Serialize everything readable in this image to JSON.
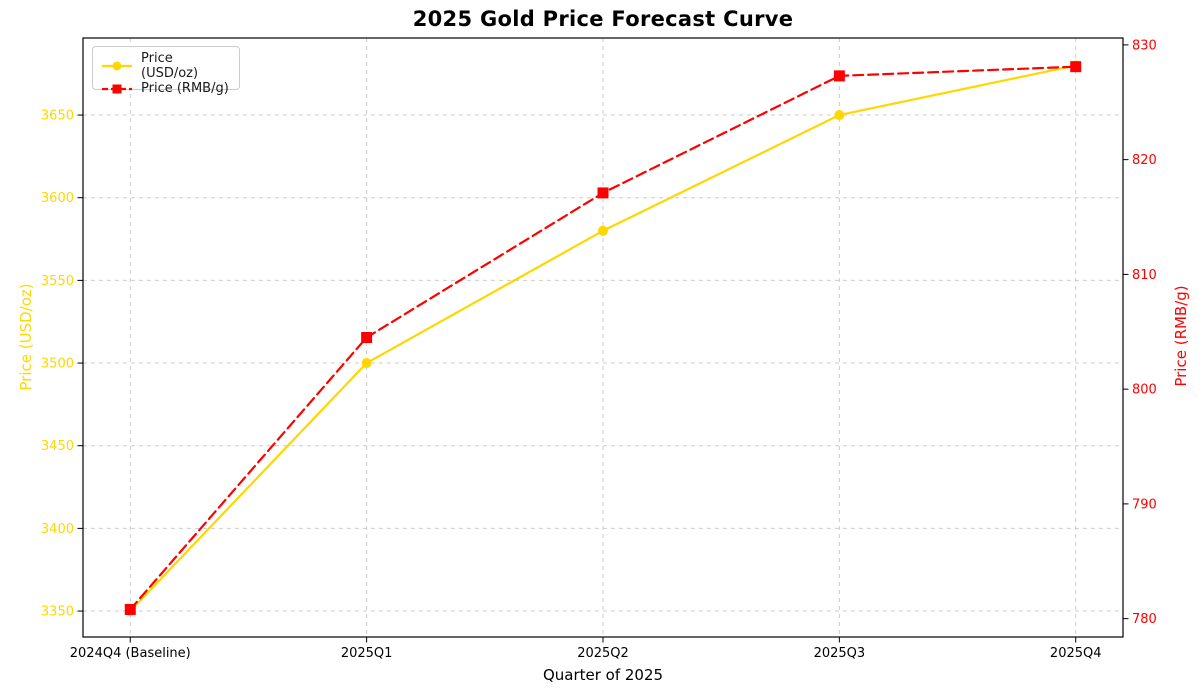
{
  "chart_data": {
    "type": "line",
    "title": "2025 Gold Price Forecast Curve",
    "xlabel": "Quarter of 2025",
    "categories": [
      "2024Q4 (Baseline)",
      "2025Q1",
      "2025Q2",
      "2025Q3",
      "2025Q4"
    ],
    "series": [
      {
        "name": "Price (USD/oz)",
        "axis": "left",
        "color": "#FFD700",
        "line_style": "solid",
        "marker": "circle",
        "values": [
          3350,
          3500,
          3580,
          3650,
          3680
        ]
      },
      {
        "name": "Price (RMB/g)",
        "axis": "right",
        "color": "#FF0000",
        "line_style": "dashed",
        "marker": "square",
        "values": [
          780.8,
          804.5,
          817.1,
          827.3,
          828.1
        ]
      }
    ],
    "left_axis": {
      "label": "Price (USD/oz)",
      "color": "#FFD700",
      "ticks": [
        3350,
        3400,
        3450,
        3500,
        3550,
        3600,
        3650
      ],
      "range": [
        3334.3,
        3696.6
      ]
    },
    "right_axis": {
      "label": "Price (RMB/g)",
      "color": "#FF0000",
      "ticks": [
        780,
        790,
        800,
        810,
        820,
        830
      ],
      "range": [
        778.4,
        830.6
      ]
    },
    "grid": true,
    "grid_color": "#cccccc",
    "spine_color": "#000000",
    "tick_text_color": "#000000",
    "legend_position": "upper-left",
    "background": "#ffffff"
  }
}
